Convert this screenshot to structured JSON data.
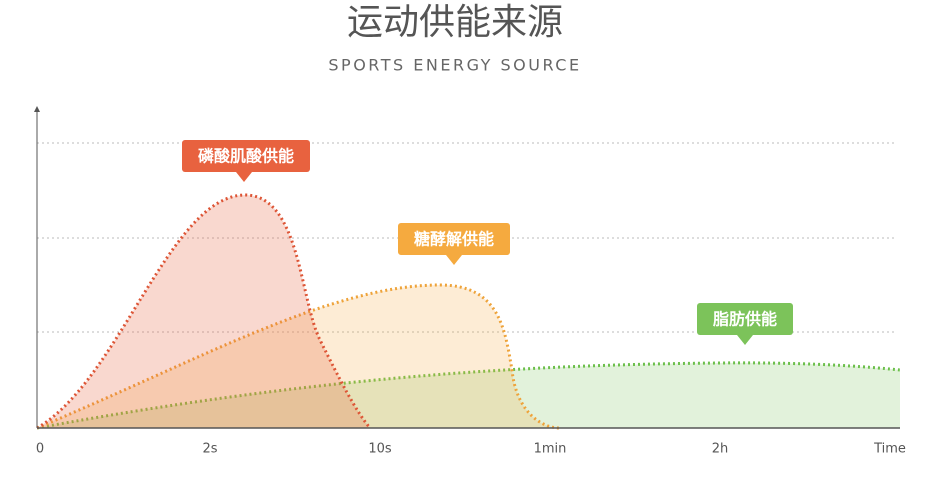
{
  "header": {
    "title": "运动供能来源",
    "subtitle": "SPORTS ENERGY SOURCE"
  },
  "curves": [
    {
      "label": "磷酸肌酸供能"
    },
    {
      "label": "糖酵解供能"
    },
    {
      "label": "脂肪供能"
    }
  ],
  "x_axis": {
    "labels": [
      "0",
      "2s",
      "10s",
      "1min",
      "2h",
      "Time"
    ]
  }
}
